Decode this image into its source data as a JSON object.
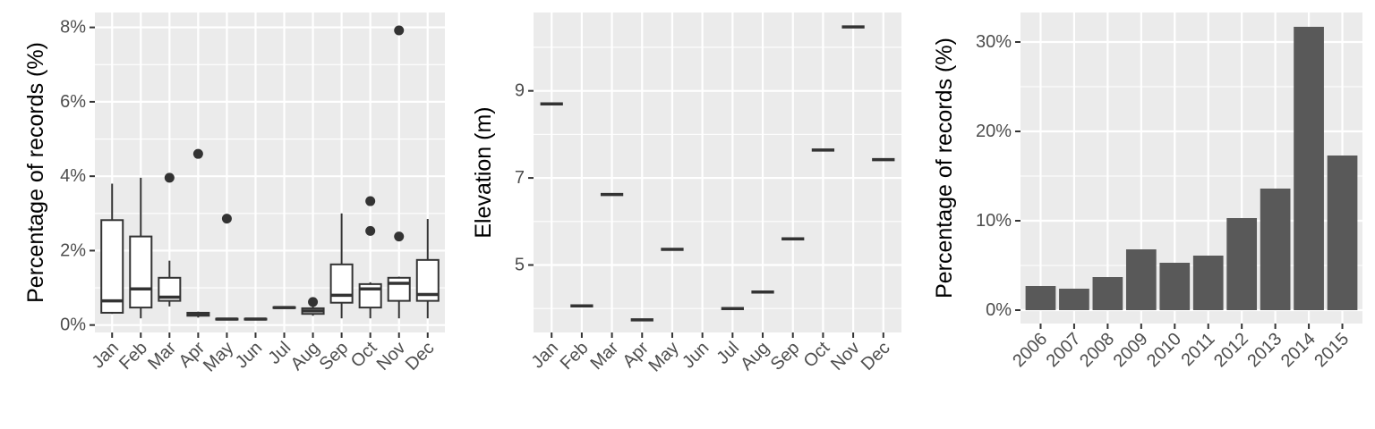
{
  "chart_data": [
    {
      "type": "boxplot",
      "ylabel": "Percentage of records (%)",
      "xlabel": "",
      "ylim": [
        -0.2,
        8.4
      ],
      "yticks": [
        0,
        2,
        4,
        6,
        8
      ],
      "ytick_labels": [
        "0%",
        "2%",
        "4%",
        "6%",
        "8%"
      ],
      "categories": [
        "Jan",
        "Feb",
        "Mar",
        "Apr",
        "May",
        "Jun",
        "Jul",
        "Aug",
        "Sep",
        "Oct",
        "Nov",
        "Dec"
      ],
      "boxes": [
        {
          "min": 0.3,
          "q1": 0.33,
          "median": 0.65,
          "q3": 2.82,
          "max": 3.8,
          "outliers": []
        },
        {
          "min": 0.18,
          "q1": 0.47,
          "median": 0.97,
          "q3": 2.38,
          "max": 3.96,
          "outliers": []
        },
        {
          "min": 0.5,
          "q1": 0.65,
          "median": 0.75,
          "q3": 1.27,
          "max": 1.73,
          "outliers": [
            3.96
          ]
        },
        {
          "min": 0.2,
          "q1": 0.25,
          "median": 0.3,
          "q3": 0.33,
          "max": 0.36,
          "outliers": [
            4.6
          ]
        },
        {
          "min": 0.15,
          "q1": 0.15,
          "median": 0.16,
          "q3": 0.17,
          "max": 0.17,
          "outliers": [
            2.86
          ]
        },
        {
          "min": 0.15,
          "q1": 0.15,
          "median": 0.16,
          "q3": 0.17,
          "max": 0.17,
          "outliers": []
        },
        {
          "min": 0.45,
          "q1": 0.46,
          "median": 0.47,
          "q3": 0.48,
          "max": 0.49,
          "outliers": []
        },
        {
          "min": 0.25,
          "q1": 0.3,
          "median": 0.38,
          "q3": 0.45,
          "max": 0.5,
          "outliers": [
            0.62
          ]
        },
        {
          "min": 0.18,
          "q1": 0.6,
          "median": 0.8,
          "q3": 1.63,
          "max": 3.0,
          "outliers": []
        },
        {
          "min": 0.18,
          "q1": 0.47,
          "median": 0.97,
          "q3": 1.1,
          "max": 1.15,
          "outliers": [
            3.33,
            2.53
          ]
        },
        {
          "min": 0.18,
          "q1": 0.65,
          "median": 1.12,
          "q3": 1.27,
          "max": 1.3,
          "outliers": [
            7.92,
            2.38
          ]
        },
        {
          "min": 0.18,
          "q1": 0.65,
          "median": 0.82,
          "q3": 1.75,
          "max": 2.85,
          "outliers": []
        }
      ]
    },
    {
      "type": "boxplot",
      "ylabel": "Elevation (m)",
      "xlabel": "",
      "ylim": [
        3.45,
        10.8
      ],
      "yticks": [
        5,
        7,
        9
      ],
      "ytick_labels": [
        "5",
        "7",
        "9"
      ],
      "categories": [
        "Jan",
        "Feb",
        "Mar",
        "Apr",
        "May",
        "Jun",
        "Jul",
        "Aug",
        "Sep",
        "Oct",
        "Nov",
        "Dec"
      ],
      "values": [
        8.7,
        4.06,
        6.62,
        3.74,
        5.36,
        null,
        4.0,
        4.38,
        5.6,
        7.64,
        10.47,
        7.42
      ]
    },
    {
      "type": "bar",
      "ylabel": "Percentage of records (%)",
      "xlabel": "",
      "ylim": [
        -1.5,
        33.3
      ],
      "yticks": [
        0,
        10,
        20,
        30
      ],
      "ytick_labels": [
        "0%",
        "10%",
        "20%",
        "30%"
      ],
      "categories": [
        "2006",
        "2007",
        "2008",
        "2009",
        "2010",
        "2011",
        "2012",
        "2013",
        "2014",
        "2015"
      ],
      "values": [
        2.7,
        2.4,
        3.7,
        6.8,
        5.3,
        6.1,
        10.3,
        13.6,
        31.7,
        17.3
      ]
    }
  ]
}
